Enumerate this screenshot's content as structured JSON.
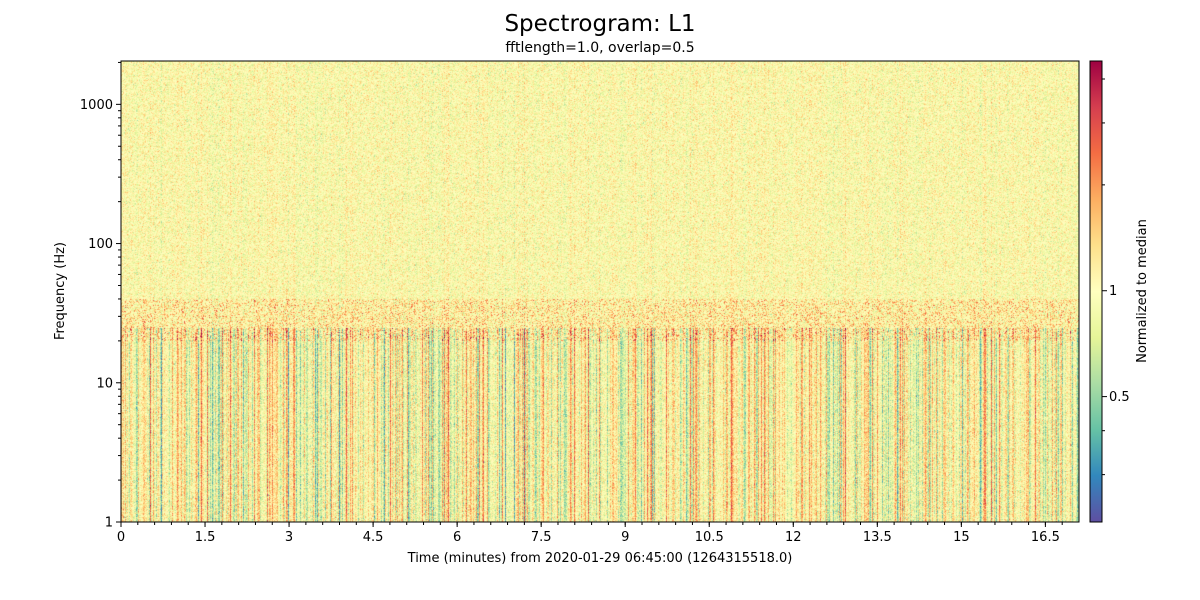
{
  "chart_data": {
    "type": "heatmap",
    "title": "Spectrogram: L1",
    "subtitle": "fftlength=1.0, overlap=0.5",
    "xlabel": "Time (minutes) from 2020-01-29 06:45:00 (1264315518.0)",
    "ylabel": "Frequency (Hz)",
    "x_ticks": [
      "0",
      "1.5",
      "3",
      "4.5",
      "6",
      "7.5",
      "9",
      "10.5",
      "12",
      "13.5",
      "15",
      "16.5"
    ],
    "y_ticks": [
      "1",
      "10",
      "100",
      "1000"
    ],
    "xlim": [
      0,
      17.1
    ],
    "ylim": [
      1,
      2048
    ],
    "yscale": "log",
    "colormap": "Spectral_r",
    "colorbar": {
      "label": "Normalized to median",
      "scale": "log",
      "ticks": [
        "0.5",
        "1"
      ]
    },
    "grid": false,
    "colors": {
      "low": "#5e4fa2",
      "mid": "#ffffbf",
      "high": "#9e0142"
    }
  }
}
